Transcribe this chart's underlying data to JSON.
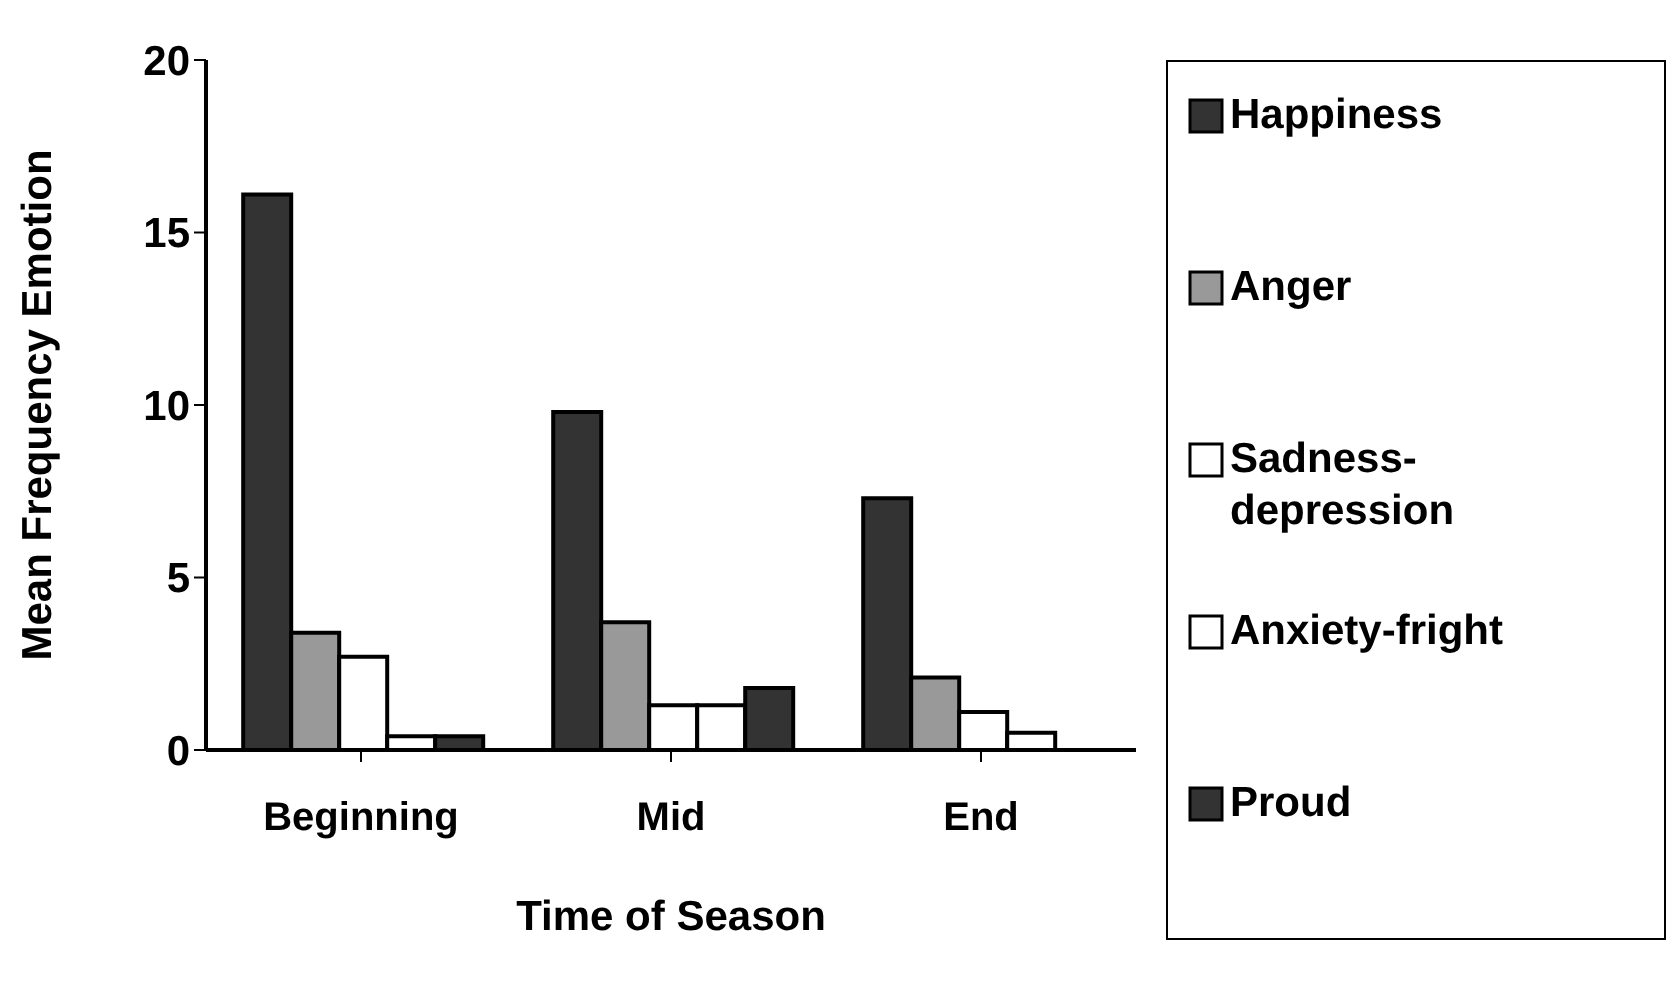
{
  "chart_data": {
    "type": "bar",
    "xlabel": "Time of Season",
    "ylabel": "Mean Frequency Emotion",
    "categories": [
      "Beginning",
      "Mid",
      "End"
    ],
    "series": [
      {
        "name": "Happiness",
        "color": "#333333",
        "values": [
          16.1,
          9.8,
          7.3
        ]
      },
      {
        "name": "Anger",
        "color": "#999999",
        "values": [
          3.4,
          3.7,
          2.1
        ]
      },
      {
        "name": "Sadness-depression",
        "color": "#ffffff",
        "values": [
          2.7,
          1.3,
          1.1
        ]
      },
      {
        "name": "Anxiety-fright",
        "color": "#ffffff",
        "values": [
          0.4,
          1.3,
          0.5
        ]
      },
      {
        "name": "Proud",
        "color": "#333333",
        "values": [
          0.4,
          1.8,
          0
        ]
      }
    ],
    "ylim": [
      0,
      20
    ],
    "yticks": [
      0,
      5,
      10,
      15,
      20
    ],
    "legend": "right"
  }
}
